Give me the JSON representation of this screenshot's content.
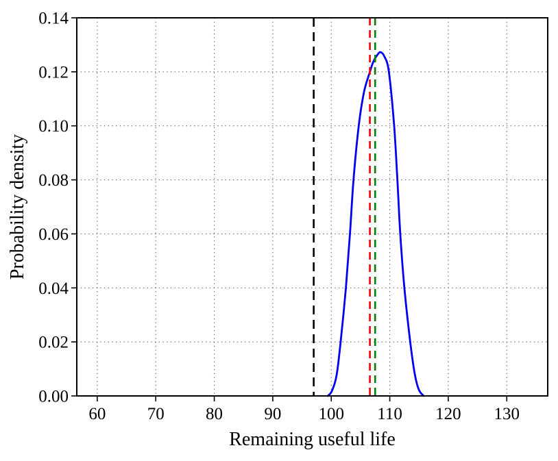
{
  "figure": {
    "background": "#ffffff",
    "title": ""
  },
  "chart_data": {
    "type": "line",
    "title": "",
    "xlabel": "Remaining useful life",
    "ylabel": "Probability density",
    "xlim": [
      56.5,
      137.0
    ],
    "ylim": [
      0,
      0.14
    ],
    "xticks": [
      60,
      70,
      80,
      90,
      100,
      110,
      120,
      130
    ],
    "xtick_labels": [
      "60",
      "70",
      "80",
      "90",
      "100",
      "110",
      "120",
      "130"
    ],
    "yticks": [
      0.0,
      0.02,
      0.04,
      0.06,
      0.08,
      0.1,
      0.12,
      0.14
    ],
    "ytick_labels": [
      "0.00",
      "0.02",
      "0.04",
      "0.06",
      "0.08",
      "0.10",
      "0.12",
      "0.14"
    ],
    "grid": "dotted",
    "grid_color": "#333333",
    "legend": "none",
    "series": [
      {
        "name": "rul-probability-density-curve",
        "color": "#0000ee",
        "style": "solid",
        "peak": {
          "x": 108.4,
          "y": 0.1273
        },
        "points": [
          [
            99.4,
            0.0
          ],
          [
            100.1,
            0.0018
          ],
          [
            100.9,
            0.0075
          ],
          [
            101.6,
            0.02
          ],
          [
            102.5,
            0.04
          ],
          [
            103.2,
            0.06
          ],
          [
            103.8,
            0.08
          ],
          [
            104.7,
            0.1
          ],
          [
            105.6,
            0.1125
          ],
          [
            106.6,
            0.12
          ],
          [
            107.2,
            0.1238
          ],
          [
            107.8,
            0.126
          ],
          [
            108.4,
            0.1273
          ],
          [
            109.1,
            0.1256
          ],
          [
            109.85,
            0.12
          ],
          [
            110.75,
            0.1
          ],
          [
            111.3,
            0.08
          ],
          [
            111.8,
            0.06
          ],
          [
            112.5,
            0.04
          ],
          [
            113.5,
            0.02
          ],
          [
            114.3,
            0.0078
          ],
          [
            115.0,
            0.0022
          ],
          [
            115.8,
            0.0
          ]
        ]
      }
    ],
    "vlines": [
      {
        "name": "black-dashed-vline",
        "x": 97.0,
        "color": "#000000",
        "style": "dashed"
      },
      {
        "name": "red-dashed-vline",
        "x": 106.6,
        "color": "#ee0000",
        "style": "dashed"
      },
      {
        "name": "green-dashed-vline",
        "x": 107.5,
        "color": "#008000",
        "style": "dashed"
      }
    ]
  }
}
